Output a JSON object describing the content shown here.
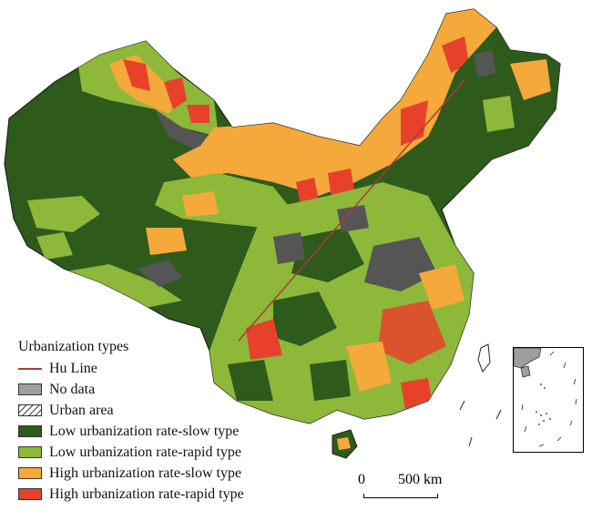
{
  "legend": {
    "title": "Urbanization types",
    "items": [
      {
        "label": "Hu Line",
        "color": "#b03a3a",
        "kind": "line"
      },
      {
        "label": "No data",
        "color": "#9e9e9e",
        "kind": "fill"
      },
      {
        "label": "Urban area",
        "color": "#555555",
        "kind": "hatch"
      },
      {
        "label": "Low urbanization rate-slow type",
        "color": "#2e5a1c",
        "kind": "fill"
      },
      {
        "label": "Low urbanization rate-rapid type",
        "color": "#8db83a",
        "kind": "fill"
      },
      {
        "label": "High urbanization rate-slow type",
        "color": "#f4a93a",
        "kind": "fill"
      },
      {
        "label": "High urbanization rate-rapid type",
        "color": "#e8412b",
        "kind": "fill"
      }
    ]
  },
  "scale": {
    "zero": "0",
    "end": "500 km"
  },
  "colors": {
    "low_slow": "#2e5a1c",
    "low_rapid": "#8db83a",
    "high_slow": "#f4a93a",
    "high_rapid": "#e8412b",
    "no_data": "#9e9e9e",
    "hu_line": "#b03a3a"
  }
}
